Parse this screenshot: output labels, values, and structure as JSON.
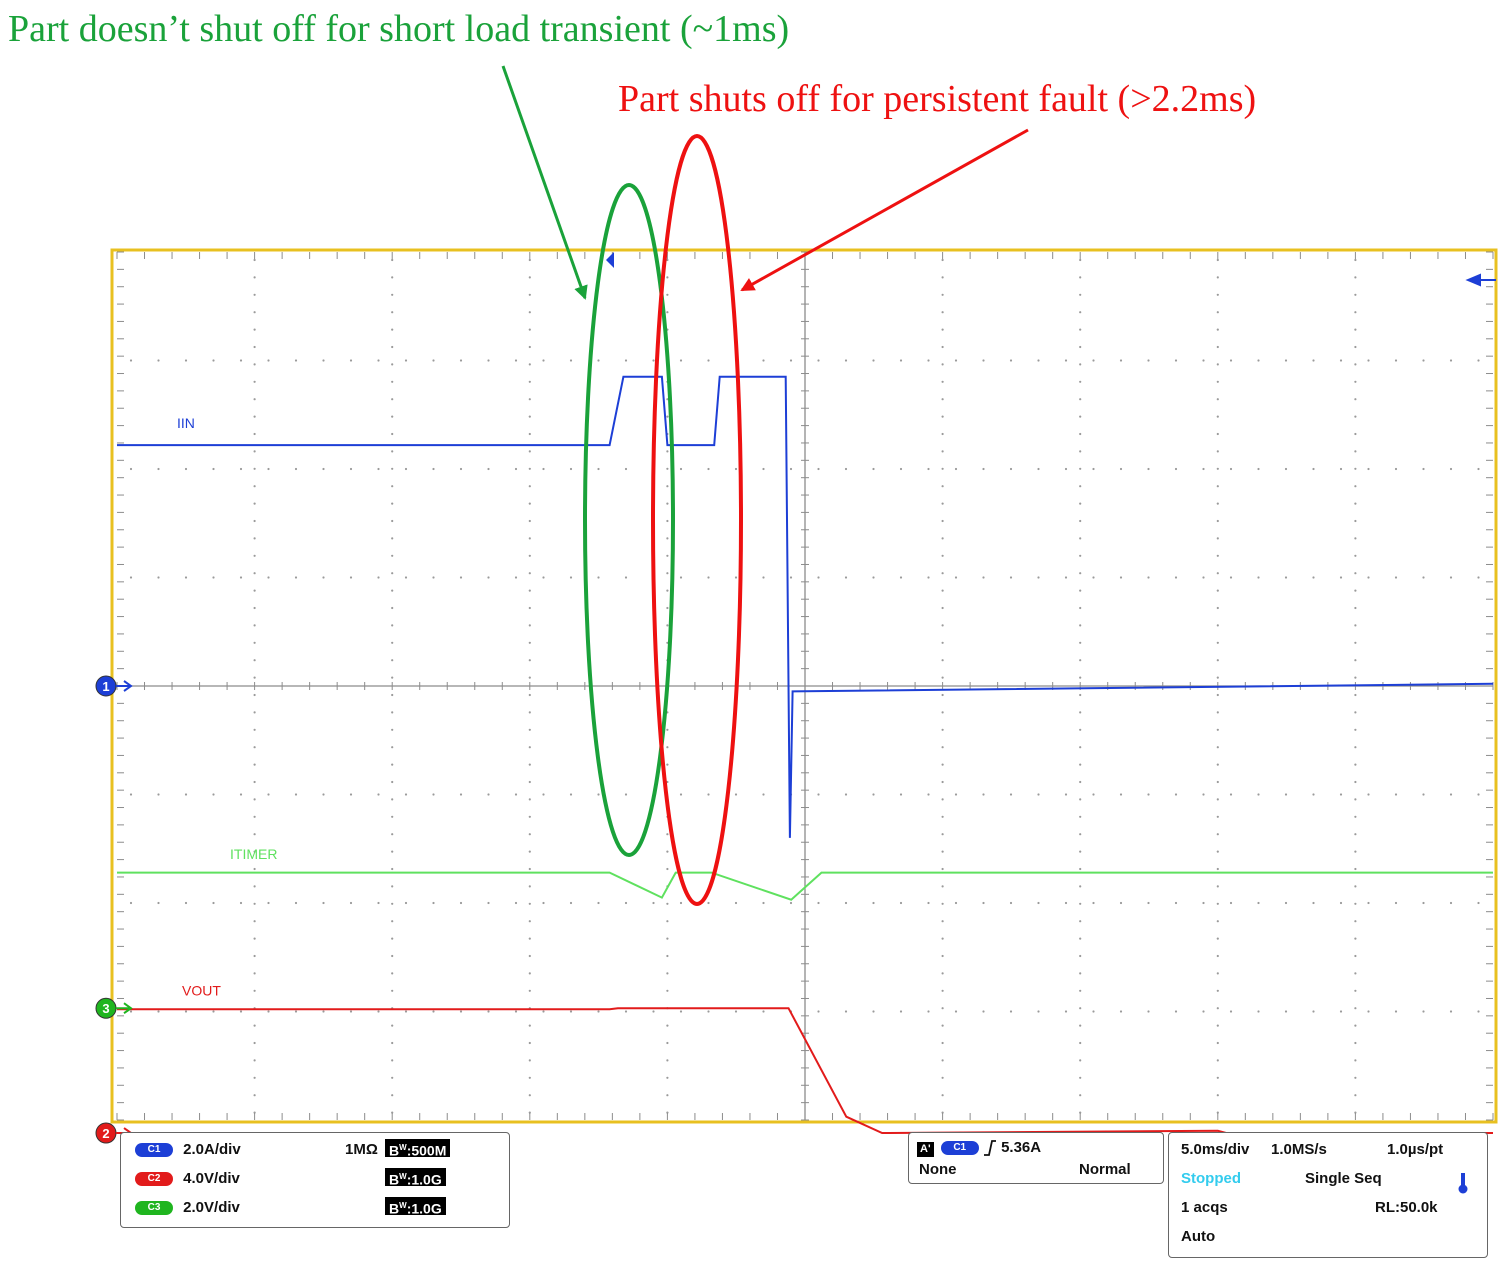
{
  "annotations": {
    "green_text": "Part doesn’t shut off for short load transient (~1ms)",
    "red_text": "Part shuts off for persistent fault (>2.2ms)",
    "green_color": "#1aa23a",
    "red_color": "#ee1111"
  },
  "channels": [
    {
      "id": "C1",
      "scale": "2.0A/div",
      "impedance": "1MΩ",
      "bw": "500M",
      "color": "#1d3fd6",
      "marker": "1",
      "trace_label": "IIN"
    },
    {
      "id": "C2",
      "scale": "4.0V/div",
      "bw": "1.0G",
      "color": "#e21b1b",
      "marker": "2",
      "trace_label": "VOUT"
    },
    {
      "id": "C3",
      "scale": "2.0V/div",
      "bw": "1.0G",
      "color": "#1fb51f",
      "marker": "3",
      "trace_label": "ITIMER"
    }
  ],
  "bw_prefix": "W",
  "trigger": {
    "aprime": "A'",
    "source": "C1",
    "level": "5.36A",
    "coupling": "None",
    "mode": "Normal"
  },
  "horizontal": {
    "timebase": "5.0ms/div",
    "sample_rate": "1.0MS/s",
    "resolution": "1.0µs/pt",
    "state": "Stopped",
    "acq_mode": "Single Seq",
    "acqs": "1 acqs",
    "record_length": "RL:50.0k",
    "trig_mode": "Auto"
  },
  "chart_data": {
    "type": "line",
    "x_unit": "ms",
    "xlim": [
      -25,
      25
    ],
    "ylim": [
      -4,
      4
    ],
    "y_unit": "div",
    "grid": true,
    "series": [
      {
        "name": "IIN",
        "color": "#1d3fd6",
        "points": [
          [
            -25,
            2.22
          ],
          [
            -7.1,
            2.22
          ],
          [
            -6.6,
            2.85
          ],
          [
            -5.2,
            2.85
          ],
          [
            -5.0,
            2.22
          ],
          [
            -3.3,
            2.22
          ],
          [
            -3.1,
            2.85
          ],
          [
            -0.7,
            2.85
          ],
          [
            -0.55,
            -1.4
          ],
          [
            -0.45,
            -0.05
          ],
          [
            25,
            0.02
          ]
        ]
      },
      {
        "name": "ITIMER",
        "color": "#5fe15f",
        "points": [
          [
            -25,
            -1.72
          ],
          [
            -7.1,
            -1.72
          ],
          [
            -5.2,
            -1.95
          ],
          [
            -4.7,
            -1.72
          ],
          [
            -3.4,
            -1.72
          ],
          [
            -0.5,
            -1.97
          ],
          [
            0.6,
            -1.72
          ],
          [
            25,
            -1.72
          ]
        ]
      },
      {
        "name": "VOUT",
        "color": "#e21b1b",
        "points": [
          [
            -25,
            -2.98
          ],
          [
            -7.1,
            -2.98
          ],
          [
            -6.8,
            -2.97
          ],
          [
            -0.6,
            -2.97
          ],
          [
            1.5,
            -3.97
          ],
          [
            2.8,
            -4.12
          ],
          [
            15,
            -4.1
          ],
          [
            15.3,
            -4.12
          ],
          [
            25,
            -4.12
          ]
        ]
      }
    ]
  }
}
